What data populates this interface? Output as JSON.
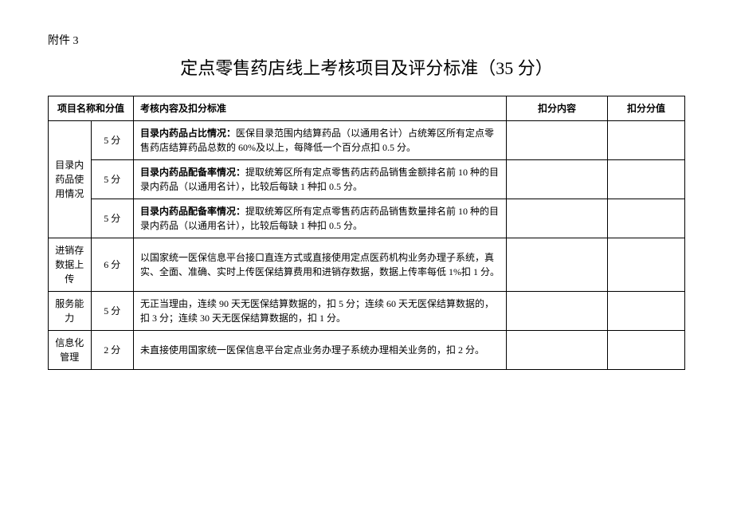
{
  "attachment_label": "附件 3",
  "title": "定点零售药店线上考核项目及评分标准（35 分）",
  "headers": {
    "category": "项目名称和分值",
    "content": "考核内容及扣分标准",
    "deduct_content": "扣分内容",
    "deduct_value": "扣分分值"
  },
  "rows": [
    {
      "category": "目录内药品使用情况",
      "rowspan": 3,
      "score": "5 分",
      "bold_prefix": "目录内药品占比情况：",
      "content": "医保目录范围内结算药品（以通用名计）占统筹区所有定点零售药店结算药品总数的 60%及以上，每降低一个百分点扣 0.5 分。"
    },
    {
      "score": "5 分",
      "bold_prefix": "目录内药品配备率情况：",
      "content": "提取统筹区所有定点零售药店药品销售金额排名前 10 种的目录内药品（以通用名计），比较后每缺 1 种扣 0.5 分。"
    },
    {
      "score": "5 分",
      "bold_prefix": "目录内药品配备率情况：",
      "content": "提取统筹区所有定点零售药店药品销售数量排名前 10 种的目录内药品（以通用名计），比较后每缺 1 种扣 0.5 分。"
    },
    {
      "category": "进销存数据上传",
      "rowspan": 1,
      "score": "6 分",
      "bold_prefix": "",
      "content": "以国家统一医保信息平台接口直连方式或直接使用定点医药机构业务办理子系统，真实、全面、准确、实时上传医保结算费用和进销存数据，数据上传率每低 1%扣 1 分。"
    },
    {
      "category": "服务能力",
      "rowspan": 1,
      "score": "5 分",
      "bold_prefix": "",
      "content": "无正当理由，连续 90 天无医保结算数据的，扣 5 分；连续 60 天无医保结算数据的，扣 3 分；连续 30 天无医保结算数据的，扣 1 分。"
    },
    {
      "category": "信息化管理",
      "rowspan": 1,
      "score": "2 分",
      "bold_prefix": "",
      "content": "未直接使用国家统一医保信息平台定点业务办理子系统办理相关业务的，扣 2 分。"
    }
  ]
}
